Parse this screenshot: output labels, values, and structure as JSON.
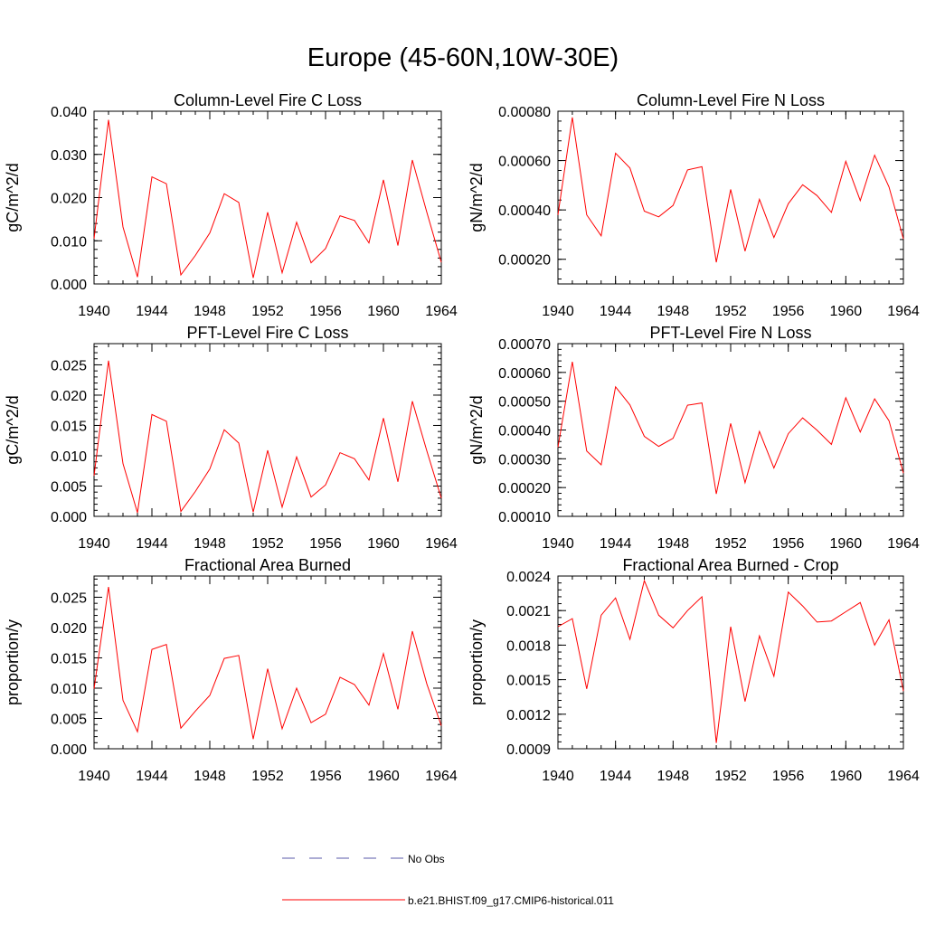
{
  "figure_title": "Europe (45-60N,10W-30E)",
  "colors": {
    "series": "#ff0000",
    "obs": "#5a5aa8",
    "axis": "#000000"
  },
  "legend": {
    "obs_label": "No Obs",
    "series_label": "b.e21.BHIST.f09_g17.CMIP6-historical.011"
  },
  "chart_data": [
    {
      "type": "line",
      "title": "Column-Level Fire C Loss",
      "xlabel": "",
      "ylabel": "gC/m^2/d",
      "xlim": [
        1940,
        1964
      ],
      "ylim": [
        0,
        0.04
      ],
      "x_ticks": [
        1940,
        1944,
        1948,
        1952,
        1956,
        1960,
        1964
      ],
      "x_tick_labels": [
        "1940",
        "1944",
        "1948",
        "1952",
        "1956",
        "1960",
        "1964"
      ],
      "y_ticks": [
        0,
        0.01,
        0.02,
        0.03,
        0.04
      ],
      "y_tick_labels": [
        "0.000",
        "0.010",
        "0.020",
        "0.030",
        "0.040"
      ],
      "y_minor_step": 0.002,
      "x": [
        1940,
        1941,
        1942,
        1943,
        1944,
        1945,
        1946,
        1947,
        1948,
        1949,
        1950,
        1951,
        1952,
        1953,
        1954,
        1955,
        1956,
        1957,
        1958,
        1959,
        1960,
        1961,
        1962,
        1963,
        1964
      ],
      "values": [
        0.0105,
        0.038,
        0.0132,
        0.0016,
        0.0248,
        0.0232,
        0.0021,
        0.0066,
        0.0118,
        0.0209,
        0.0189,
        0.0014,
        0.0166,
        0.0026,
        0.0143,
        0.0049,
        0.0082,
        0.0158,
        0.0147,
        0.0095,
        0.0241,
        0.0089,
        0.0287,
        0.0166,
        0.005
      ]
    },
    {
      "type": "line",
      "title": "Column-Level Fire N Loss",
      "xlabel": "",
      "ylabel": "gN/m^2/d",
      "xlim": [
        1940,
        1964
      ],
      "ylim": [
        0.0001,
        0.0008
      ],
      "x_ticks": [
        1940,
        1944,
        1948,
        1952,
        1956,
        1960,
        1964
      ],
      "x_tick_labels": [
        "1940",
        "1944",
        "1948",
        "1952",
        "1956",
        "1960",
        "1964"
      ],
      "y_ticks": [
        0.0002,
        0.0004,
        0.0006,
        0.0008
      ],
      "y_tick_labels": [
        "0.00020",
        "0.00040",
        "0.00060",
        "0.00080"
      ],
      "y_minor_step": 4e-05,
      "x": [
        1940,
        1941,
        1942,
        1943,
        1944,
        1945,
        1946,
        1947,
        1948,
        1949,
        1950,
        1951,
        1952,
        1953,
        1954,
        1955,
        1956,
        1957,
        1958,
        1959,
        1960,
        1961,
        1962,
        1963,
        1964
      ],
      "values": [
        0.00038,
        0.000775,
        0.00038,
        0.000295,
        0.00063,
        0.00057,
        0.000395,
        0.000372,
        0.000418,
        0.000562,
        0.000575,
        0.000188,
        0.000483,
        0.000233,
        0.000443,
        0.000288,
        0.000425,
        0.000502,
        0.000458,
        0.00039,
        0.000597,
        0.000438,
        0.000622,
        0.000493,
        0.000282
      ]
    },
    {
      "type": "line",
      "title": "PFT-Level Fire C Loss",
      "xlabel": "",
      "ylabel": "gC/m^2/d",
      "xlim": [
        1940,
        1964
      ],
      "ylim": [
        0,
        0.0285
      ],
      "x_ticks": [
        1940,
        1944,
        1948,
        1952,
        1956,
        1960,
        1964
      ],
      "x_tick_labels": [
        "1940",
        "1944",
        "1948",
        "1952",
        "1956",
        "1960",
        "1964"
      ],
      "y_ticks": [
        0,
        0.005,
        0.01,
        0.015,
        0.02,
        0.025
      ],
      "y_tick_labels": [
        "0.000",
        "0.005",
        "0.010",
        "0.015",
        "0.020",
        "0.025"
      ],
      "y_minor_step": 0.001,
      "x": [
        1940,
        1941,
        1942,
        1943,
        1944,
        1945,
        1946,
        1947,
        1948,
        1949,
        1950,
        1951,
        1952,
        1953,
        1954,
        1955,
        1956,
        1957,
        1958,
        1959,
        1960,
        1961,
        1962,
        1963,
        1964
      ],
      "values": [
        0.0067,
        0.0257,
        0.0087,
        0.0006,
        0.0168,
        0.0157,
        0.0008,
        0.0041,
        0.0078,
        0.0143,
        0.0121,
        0.0007,
        0.0109,
        0.0015,
        0.0098,
        0.0032,
        0.0052,
        0.0105,
        0.0095,
        0.006,
        0.0162,
        0.0057,
        0.019,
        0.0108,
        0.003
      ]
    },
    {
      "type": "line",
      "title": "PFT-Level Fire N Loss",
      "xlabel": "",
      "ylabel": "gN/m^2/d",
      "xlim": [
        1940,
        1964
      ],
      "ylim": [
        0.0001,
        0.0007
      ],
      "x_ticks": [
        1940,
        1944,
        1948,
        1952,
        1956,
        1960,
        1964
      ],
      "x_tick_labels": [
        "1940",
        "1944",
        "1948",
        "1952",
        "1956",
        "1960",
        "1964"
      ],
      "y_ticks": [
        0.0001,
        0.0002,
        0.0003,
        0.0004,
        0.0005,
        0.0006,
        0.0007
      ],
      "y_tick_labels": [
        "0.00010",
        "0.00020",
        "0.00030",
        "0.00040",
        "0.00050",
        "0.00060",
        "0.00070"
      ],
      "y_minor_step": 2e-05,
      "x": [
        1940,
        1941,
        1942,
        1943,
        1944,
        1945,
        1946,
        1947,
        1948,
        1949,
        1950,
        1951,
        1952,
        1953,
        1954,
        1955,
        1956,
        1957,
        1958,
        1959,
        1960,
        1961,
        1962,
        1963,
        1964
      ],
      "values": [
        0.00034,
        0.000637,
        0.000327,
        0.000279,
        0.00055,
        0.000487,
        0.000378,
        0.000343,
        0.000371,
        0.000486,
        0.000494,
        0.000178,
        0.000423,
        0.000217,
        0.000395,
        0.000268,
        0.000387,
        0.000442,
        0.000399,
        0.00035,
        0.000512,
        0.000393,
        0.000508,
        0.000432,
        0.00025
      ]
    },
    {
      "type": "line",
      "title": "Fractional Area Burned",
      "xlabel": "",
      "ylabel": "proportion/y",
      "xlim": [
        1940,
        1964
      ],
      "ylim": [
        0,
        0.0285
      ],
      "x_ticks": [
        1940,
        1944,
        1948,
        1952,
        1956,
        1960,
        1964
      ],
      "x_tick_labels": [
        "1940",
        "1944",
        "1948",
        "1952",
        "1956",
        "1960",
        "1964"
      ],
      "y_ticks": [
        0,
        0.005,
        0.01,
        0.015,
        0.02,
        0.025
      ],
      "y_tick_labels": [
        "0.000",
        "0.005",
        "0.010",
        "0.015",
        "0.020",
        "0.025"
      ],
      "y_minor_step": 0.001,
      "x": [
        1940,
        1941,
        1942,
        1943,
        1944,
        1945,
        1946,
        1947,
        1948,
        1949,
        1950,
        1951,
        1952,
        1953,
        1954,
        1955,
        1956,
        1957,
        1958,
        1959,
        1960,
        1961,
        1962,
        1963,
        1964
      ],
      "values": [
        0.0099,
        0.0267,
        0.008,
        0.0028,
        0.0164,
        0.0172,
        0.0034,
        0.0062,
        0.0088,
        0.0149,
        0.0154,
        0.0016,
        0.0132,
        0.0033,
        0.01,
        0.0043,
        0.0057,
        0.0118,
        0.0106,
        0.0072,
        0.0157,
        0.0065,
        0.0194,
        0.0107,
        0.0038
      ]
    },
    {
      "type": "line",
      "title": "Fractional Area Burned - Crop",
      "xlabel": "",
      "ylabel": "proportion/y",
      "xlim": [
        1940,
        1964
      ],
      "ylim": [
        0.0009,
        0.0024
      ],
      "x_ticks": [
        1940,
        1944,
        1948,
        1952,
        1956,
        1960,
        1964
      ],
      "x_tick_labels": [
        "1940",
        "1944",
        "1948",
        "1952",
        "1956",
        "1960",
        "1964"
      ],
      "y_ticks": [
        0.0009,
        0.0012,
        0.0015,
        0.0018,
        0.0021,
        0.0024
      ],
      "y_tick_labels": [
        "0.0009",
        "0.0012",
        "0.0015",
        "0.0018",
        "0.0021",
        "0.0024"
      ],
      "y_minor_step": 6e-05,
      "x": [
        1940,
        1941,
        1942,
        1943,
        1944,
        1945,
        1946,
        1947,
        1948,
        1949,
        1950,
        1951,
        1952,
        1953,
        1954,
        1955,
        1956,
        1957,
        1958,
        1959,
        1960,
        1961,
        1962,
        1963,
        1964
      ],
      "values": [
        0.00196,
        0.00203,
        0.00142,
        0.00206,
        0.00221,
        0.00185,
        0.00236,
        0.00206,
        0.00195,
        0.0021,
        0.00222,
        0.00095,
        0.00196,
        0.00131,
        0.00188,
        0.00153,
        0.00226,
        0.00214,
        0.002,
        0.00201,
        0.00209,
        0.00217,
        0.0018,
        0.00202,
        0.0014
      ]
    }
  ]
}
